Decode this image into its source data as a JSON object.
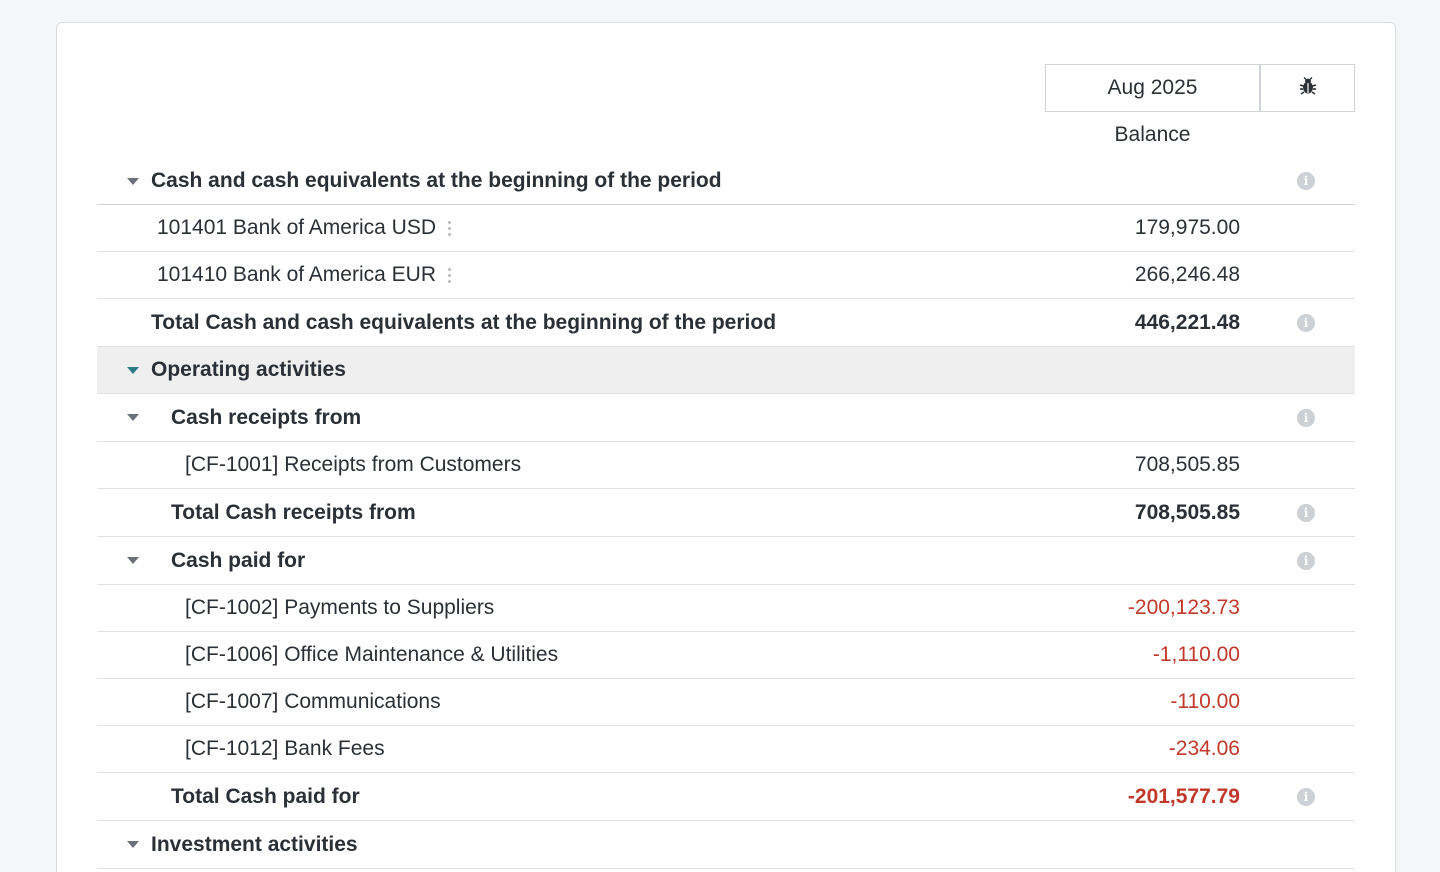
{
  "header": {
    "period": "Aug 2025",
    "column_label": "Balance"
  },
  "icons": {
    "debug": "bug-icon",
    "info": "info-icon",
    "kebab": "vertical-dots-icon",
    "caret": "caret-down-icon"
  },
  "colors": {
    "negative": "#c0392b",
    "active_caret": "#2a7d84",
    "active_row_bg": "#efeff0"
  },
  "rows": {
    "opening_header": {
      "label": "Cash and cash equivalents at the beginning of the period"
    },
    "acct_usd": {
      "label": "101401 Bank of America USD",
      "value": "179,975.00"
    },
    "acct_eur": {
      "label": "101410 Bank of America EUR",
      "value": "266,246.48"
    },
    "opening_total": {
      "label": "Total Cash and cash equivalents at the beginning of the period",
      "value": "446,221.48"
    },
    "operating_header": {
      "label": "Operating activities"
    },
    "receipts_header": {
      "label": "Cash receipts from"
    },
    "cf1001": {
      "label": "[CF-1001] Receipts from Customers",
      "value": "708,505.85"
    },
    "receipts_total": {
      "label": "Total Cash receipts from",
      "value": "708,505.85"
    },
    "paid_header": {
      "label": "Cash paid for"
    },
    "cf1002": {
      "label": "[CF-1002] Payments to Suppliers",
      "value": "-200,123.73"
    },
    "cf1006": {
      "label": "[CF-1006] Office Maintenance & Utilities",
      "value": "-1,110.00"
    },
    "cf1007": {
      "label": "[CF-1007] Communications",
      "value": "-110.00"
    },
    "cf1012": {
      "label": "[CF-1012] Bank Fees",
      "value": "-234.06"
    },
    "paid_total": {
      "label": "Total Cash paid for",
      "value": "-201,577.79"
    },
    "investment_header": {
      "label": "Investment activities"
    }
  }
}
